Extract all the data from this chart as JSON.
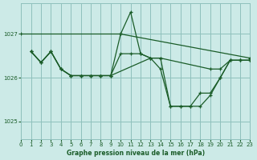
{
  "background_color": "#cceae7",
  "grid_color": "#8fc0bc",
  "line_color": "#1a5c28",
  "title": "Graphe pression niveau de la mer (hPa)",
  "xlim": [
    0,
    23
  ],
  "ylim": [
    1024.6,
    1027.7
  ],
  "yticks": [
    1025,
    1026,
    1027
  ],
  "xticks": [
    0,
    1,
    2,
    3,
    4,
    5,
    6,
    7,
    8,
    9,
    10,
    11,
    12,
    13,
    14,
    15,
    16,
    17,
    18,
    19,
    20,
    21,
    22,
    23
  ],
  "series": [
    {
      "x": [
        0,
        10,
        23
      ],
      "y": [
        1027.0,
        1027.0,
        1026.45
      ]
    },
    {
      "x": [
        1,
        2,
        3,
        4,
        5,
        6,
        7,
        8,
        9,
        10,
        11,
        12,
        13,
        14,
        15,
        16,
        17,
        18,
        19,
        20,
        21,
        22,
        23
      ],
      "y": [
        1026.6,
        1026.35,
        1026.6,
        1026.2,
        1026.05,
        1026.05,
        1026.05,
        1026.05,
        1026.05,
        1027.0,
        1027.5,
        1026.55,
        1026.45,
        1026.45,
        1025.35,
        1025.35,
        1025.35,
        1025.35,
        1025.6,
        1026.0,
        1026.4,
        1026.4,
        1026.4
      ]
    },
    {
      "x": [
        1,
        2,
        3,
        4,
        5,
        6,
        7,
        8,
        9,
        10,
        11,
        12,
        13,
        14,
        19,
        20,
        21,
        22,
        23
      ],
      "y": [
        1026.6,
        1026.35,
        1026.6,
        1026.2,
        1026.05,
        1026.05,
        1026.05,
        1026.05,
        1026.05,
        1026.55,
        1026.55,
        1026.55,
        1026.45,
        1026.45,
        1026.2,
        1026.2,
        1026.4,
        1026.4,
        1026.4
      ]
    },
    {
      "x": [
        1,
        2,
        3,
        4,
        5,
        6,
        7,
        8,
        9,
        13,
        14,
        15,
        16,
        17,
        18,
        19,
        20,
        21,
        22,
        23
      ],
      "y": [
        1026.6,
        1026.35,
        1026.6,
        1026.2,
        1026.05,
        1026.05,
        1026.05,
        1026.05,
        1026.05,
        1026.45,
        1026.2,
        1025.35,
        1025.35,
        1025.35,
        1025.65,
        1025.65,
        1026.0,
        1026.4,
        1026.4,
        1026.4
      ]
    }
  ]
}
